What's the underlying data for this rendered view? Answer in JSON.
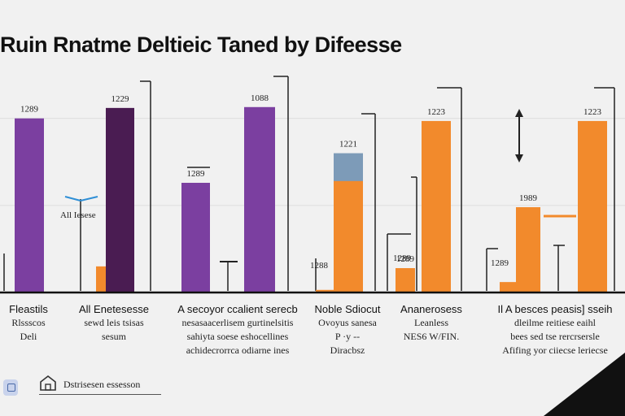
{
  "chart_data": {
    "type": "bar",
    "title": "Ruin Rnatme Deltieic Taned by Difeesse",
    "xlabel": "",
    "ylabel": "",
    "ylim": [
      0,
      280
    ],
    "grid": true,
    "colors": {
      "violet": "#7b3fa0",
      "plum": "#4a1c52",
      "orange": "#f28a2c",
      "steel": "#7d9bb8"
    },
    "bars": [
      {
        "category": "Fleastils",
        "value": 200,
        "label": "1289",
        "color": "violet"
      },
      {
        "category": "All Enetesesse",
        "value": 30,
        "label": "",
        "color": "orange"
      },
      {
        "category": "All Enetesesse",
        "value": 212,
        "label": "1229",
        "color": "plum"
      },
      {
        "category": "A secoyor ccalient serecb",
        "value": 126,
        "label": "1289",
        "color": "violet"
      },
      {
        "category": "A secoyor ccalient serecb",
        "value": 213,
        "label": "1088",
        "color": "violet"
      },
      {
        "category": "Noble Sdiocut",
        "value": 160,
        "label": "1221",
        "color": "steel"
      },
      {
        "category": "Noble Sdiocut",
        "value": 3,
        "label": "",
        "color": "orange"
      },
      {
        "category": "Ananerosess",
        "value": 28,
        "label": "1289",
        "color": "orange"
      },
      {
        "category": "Ananerosess",
        "value": 197,
        "label": "1223",
        "color": "orange"
      },
      {
        "category": "Il A besces",
        "value": 12,
        "label": "",
        "color": "orange"
      },
      {
        "category": "Il A besces",
        "value": 98,
        "label": "1989",
        "color": "orange"
      },
      {
        "category": "Il A besces",
        "value": 197,
        "label": "1223",
        "color": "orange"
      }
    ],
    "annotations": [
      {
        "text": "All Iesese"
      },
      {
        "text": "1288"
      },
      {
        "text": "1289"
      },
      {
        "text": "1289"
      }
    ],
    "category_labels": [
      {
        "lead": "Fleastils",
        "lines": [
          "Rlssscos",
          "Deli"
        ]
      },
      {
        "lead": "All Enetesesse",
        "lines": [
          "sewd leis tsisas",
          "sesum"
        ]
      },
      {
        "lead": "A secoyor ccalient serecb",
        "lines": [
          "nesasaacerlisem gurtinelsitis",
          "sahiyta soese eshocellines",
          "achidecrorrca odiarne ines"
        ]
      },
      {
        "lead": "Noble Sdiocut",
        "lines": [
          "Ovoyus sanesa",
          "P ·y --",
          "Diracbsz"
        ]
      },
      {
        "lead": "Ananerosess",
        "lines": [
          "Leanless",
          "NES6 W/FIN."
        ]
      },
      {
        "lead": "Il A besces peasis] sseih",
        "lines": [
          "dleilme reitiese eaihl",
          "bees sed tse rercrsersle",
          "Afifing yor ciiecse leriecse"
        ]
      }
    ]
  },
  "footer": {
    "caption": "Dstrisesen essesson"
  }
}
